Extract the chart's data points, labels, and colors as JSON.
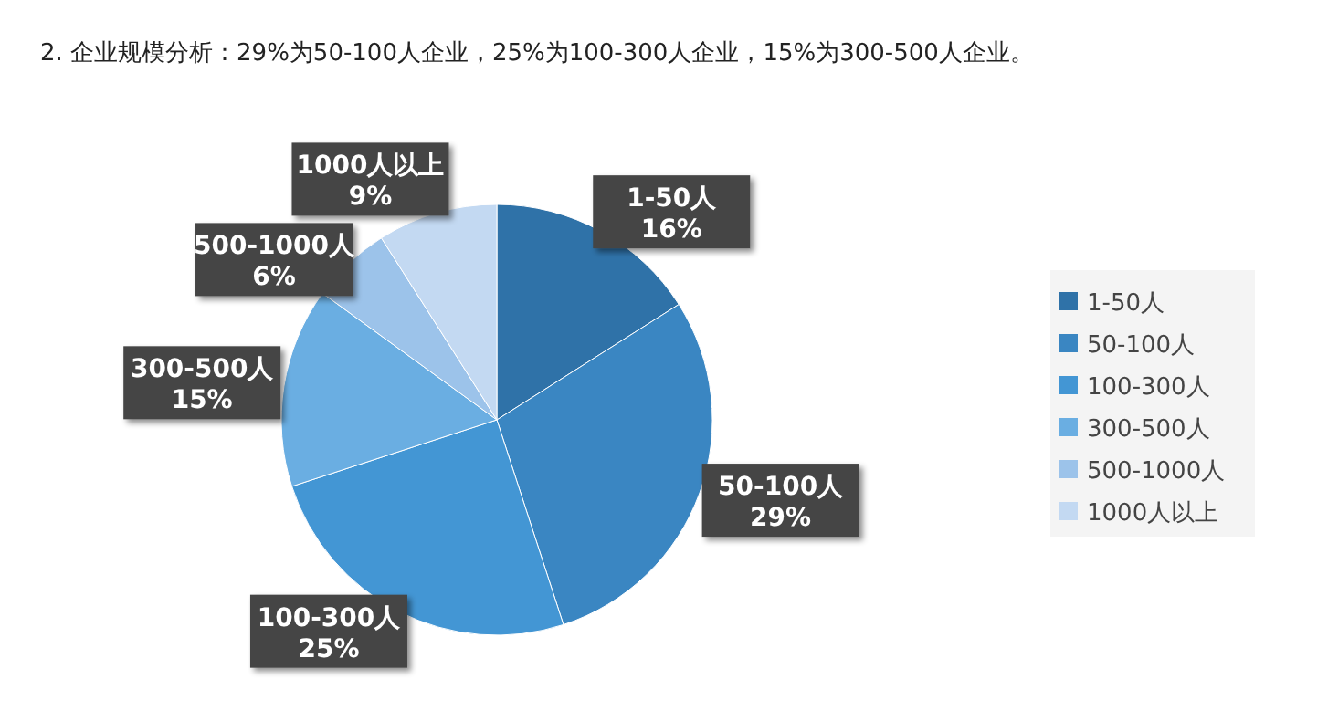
{
  "chart_data": {
    "type": "pie",
    "title": "2. 企业规模分析：29%为50-100人企业，25%为100-300人企业，15%为300-500人企业。",
    "categories": [
      "1-50人",
      "50-100人",
      "100-300人",
      "300-500人",
      "500-1000人",
      "1000人以上"
    ],
    "values": [
      16,
      29,
      25,
      15,
      6,
      9
    ],
    "colors": [
      "#2f72a8",
      "#3a86c2",
      "#4396d4",
      "#6aaee2",
      "#9cc3ea",
      "#c3d9f2"
    ],
    "value_labels": [
      "16%",
      "29%",
      "25%",
      "15%",
      "6%",
      "9%"
    ],
    "legend": "right"
  }
}
